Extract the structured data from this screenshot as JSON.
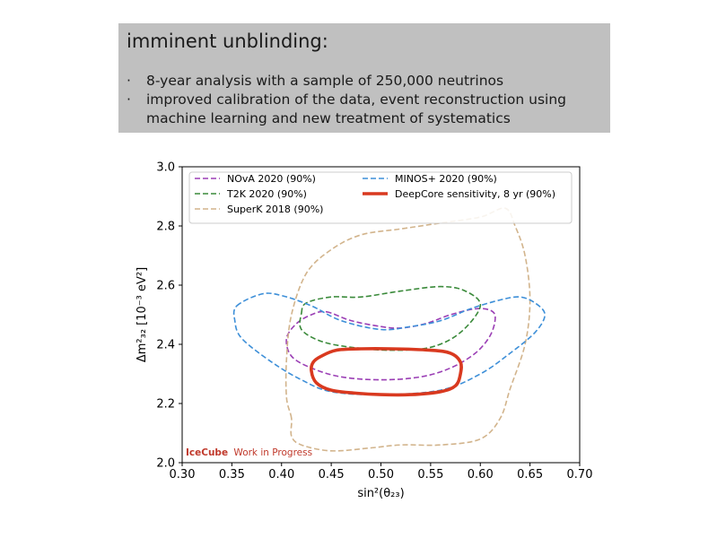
{
  "slide": {
    "heading": "imminent unblinding:",
    "bullets": [
      "8-year analysis with a sample of 250,000 neutrinos",
      "improved calibration of the data, event reconstruction using machine learning and new treatment of systematics"
    ]
  },
  "chart_data": {
    "type": "line",
    "title": "",
    "xlabel": "sin²(θ₂₃)",
    "ylabel": "Δm²₃₂ [10⁻³ eV²]",
    "xlim": [
      0.3,
      0.7
    ],
    "ylim": [
      2.0,
      3.0
    ],
    "xticks": [
      "0.30",
      "0.35",
      "0.40",
      "0.45",
      "0.50",
      "0.55",
      "0.60",
      "0.65",
      "0.70"
    ],
    "yticks": [
      "2.0",
      "2.2",
      "2.4",
      "2.6",
      "2.8",
      "3.0"
    ],
    "watermark": {
      "brand": "IceCube",
      "text": "Work in Progress"
    },
    "legend_location": "top",
    "series": [
      {
        "name": "NOvA 2020 (90%)",
        "color": "#9b3fb5",
        "style": "dashed",
        "points": [
          [
            0.445,
            2.51
          ],
          [
            0.47,
            2.48
          ],
          [
            0.5,
            2.46
          ],
          [
            0.52,
            2.455
          ],
          [
            0.545,
            2.47
          ],
          [
            0.57,
            2.5
          ],
          [
            0.595,
            2.52
          ],
          [
            0.61,
            2.515
          ],
          [
            0.615,
            2.49
          ],
          [
            0.61,
            2.43
          ],
          [
            0.595,
            2.37
          ],
          [
            0.57,
            2.32
          ],
          [
            0.54,
            2.29
          ],
          [
            0.5,
            2.28
          ],
          [
            0.46,
            2.29
          ],
          [
            0.43,
            2.32
          ],
          [
            0.41,
            2.36
          ],
          [
            0.405,
            2.42
          ],
          [
            0.415,
            2.47
          ],
          [
            0.43,
            2.5
          ]
        ]
      },
      {
        "name": "T2K 2020 (90%)",
        "color": "#3a8a3a",
        "style": "dashed",
        "points": [
          [
            0.42,
            2.505
          ],
          [
            0.425,
            2.54
          ],
          [
            0.45,
            2.56
          ],
          [
            0.48,
            2.56
          ],
          [
            0.52,
            2.58
          ],
          [
            0.56,
            2.595
          ],
          [
            0.585,
            2.58
          ],
          [
            0.6,
            2.53
          ],
          [
            0.58,
            2.44
          ],
          [
            0.55,
            2.39
          ],
          [
            0.51,
            2.38
          ],
          [
            0.47,
            2.39
          ],
          [
            0.44,
            2.41
          ],
          [
            0.42,
            2.45
          ]
        ]
      },
      {
        "name": "SuperK 2018 (90%)",
        "color": "#d2b48c",
        "style": "dashed",
        "points": [
          [
            0.41,
            2.15
          ],
          [
            0.405,
            2.22
          ],
          [
            0.405,
            2.35
          ],
          [
            0.41,
            2.5
          ],
          [
            0.425,
            2.64
          ],
          [
            0.45,
            2.72
          ],
          [
            0.48,
            2.77
          ],
          [
            0.52,
            2.79
          ],
          [
            0.56,
            2.81
          ],
          [
            0.6,
            2.83
          ],
          [
            0.625,
            2.86
          ],
          [
            0.635,
            2.8
          ],
          [
            0.645,
            2.7
          ],
          [
            0.65,
            2.55
          ],
          [
            0.645,
            2.4
          ],
          [
            0.63,
            2.25
          ],
          [
            0.62,
            2.15
          ],
          [
            0.6,
            2.08
          ],
          [
            0.56,
            2.06
          ],
          [
            0.52,
            2.06
          ],
          [
            0.49,
            2.05
          ],
          [
            0.45,
            2.04
          ],
          [
            0.42,
            2.06
          ],
          [
            0.41,
            2.09
          ]
        ]
      },
      {
        "name": "MINOS+ 2020 (90%)",
        "color": "#3d8fd8",
        "style": "dashed",
        "points": [
          [
            0.355,
            2.53
          ],
          [
            0.38,
            2.57
          ],
          [
            0.4,
            2.565
          ],
          [
            0.43,
            2.53
          ],
          [
            0.46,
            2.48
          ],
          [
            0.5,
            2.45
          ],
          [
            0.53,
            2.46
          ],
          [
            0.56,
            2.48
          ],
          [
            0.59,
            2.52
          ],
          [
            0.62,
            2.55
          ],
          [
            0.64,
            2.56
          ],
          [
            0.655,
            2.54
          ],
          [
            0.665,
            2.5
          ],
          [
            0.655,
            2.44
          ],
          [
            0.63,
            2.37
          ],
          [
            0.6,
            2.3
          ],
          [
            0.56,
            2.245
          ],
          [
            0.5,
            2.23
          ],
          [
            0.45,
            2.24
          ],
          [
            0.42,
            2.28
          ],
          [
            0.39,
            2.34
          ],
          [
            0.36,
            2.42
          ],
          [
            0.353,
            2.48
          ]
        ]
      },
      {
        "name": "DeepCore sensitivity, 8 yr (90%)",
        "color": "#d9391f",
        "style": "solid",
        "points": [
          [
            0.43,
            2.31
          ],
          [
            0.435,
            2.27
          ],
          [
            0.45,
            2.245
          ],
          [
            0.475,
            2.235
          ],
          [
            0.5,
            2.23
          ],
          [
            0.53,
            2.23
          ],
          [
            0.56,
            2.24
          ],
          [
            0.575,
            2.26
          ],
          [
            0.58,
            2.3
          ],
          [
            0.58,
            2.34
          ],
          [
            0.57,
            2.37
          ],
          [
            0.55,
            2.38
          ],
          [
            0.51,
            2.385
          ],
          [
            0.48,
            2.385
          ],
          [
            0.455,
            2.38
          ],
          [
            0.44,
            2.36
          ],
          [
            0.432,
            2.34
          ]
        ]
      }
    ]
  }
}
